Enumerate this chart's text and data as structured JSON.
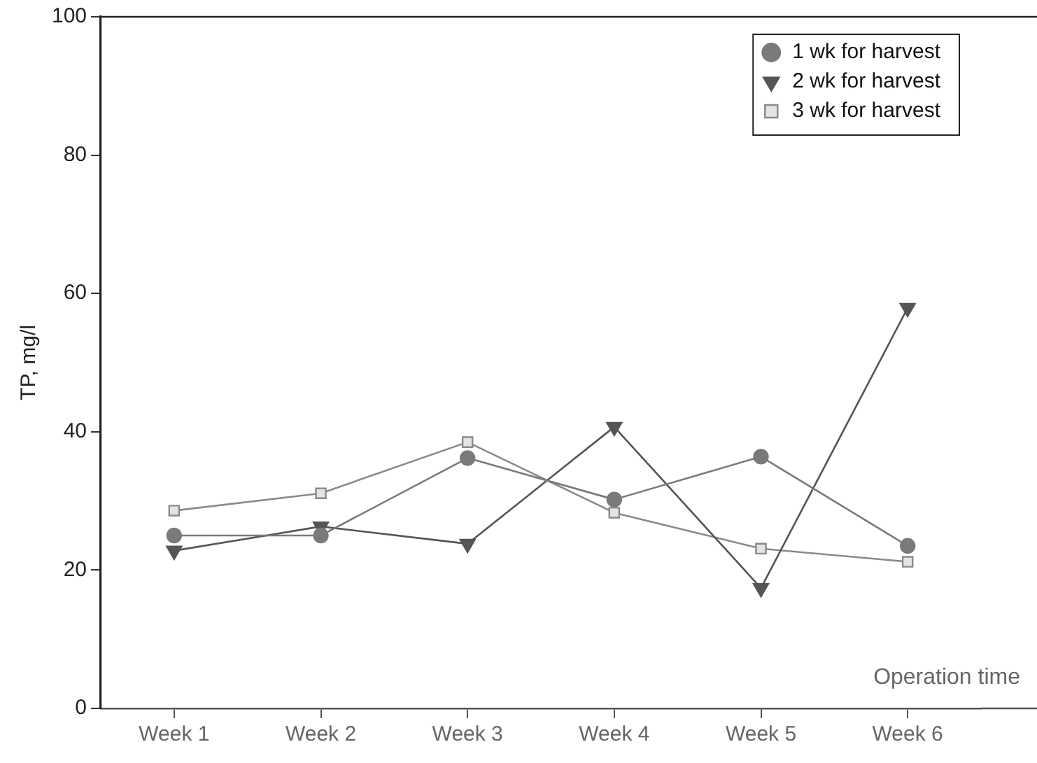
{
  "chart_data": {
    "type": "line",
    "xlabel": "Operation time",
    "ylabel": "TP, mg/l",
    "categories": [
      "Week 1",
      "Week 2",
      "Week 3",
      "Week 4",
      "Week 5",
      "Week 6"
    ],
    "series": [
      {
        "name": "1 wk for harvest",
        "color": "#7a7a7a",
        "marker": "circle",
        "values": [
          25.0,
          25.0,
          36.2,
          30.2,
          36.4,
          23.5
        ]
      },
      {
        "name": "2 wk for harvest",
        "color": "#555555",
        "marker": "triangle",
        "values": [
          22.8,
          26.3,
          23.8,
          40.7,
          17.4,
          57.9
        ]
      },
      {
        "name": "3 wk for harvest",
        "color": "#8a8a8a",
        "marker": "square",
        "values": [
          28.6,
          31.1,
          38.5,
          28.3,
          23.1,
          21.2
        ]
      }
    ],
    "ylim": [
      0,
      100
    ],
    "yticks": [
      0,
      20,
      40,
      60,
      80,
      100
    ],
    "grid": false,
    "legend": "top right",
    "line_style": "solid"
  }
}
